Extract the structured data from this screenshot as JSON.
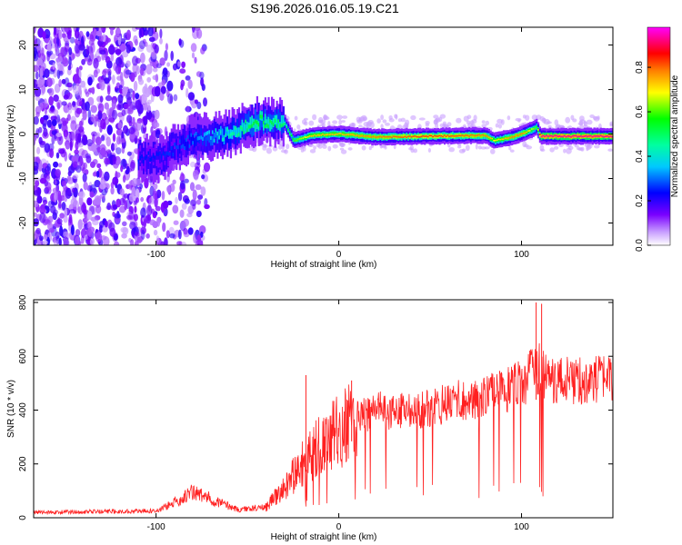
{
  "title": "S196.2026.016.05.19.C21",
  "chart_data": [
    {
      "type": "heatmap",
      "xlabel": "Height of straight line (km)",
      "ylabel": "Frequency (Hz)",
      "xlim": [
        -167,
        150
      ],
      "ylim": [
        -25,
        24
      ],
      "xticks": [
        -100,
        0,
        100
      ],
      "yticks": [
        -20,
        -10,
        0,
        10,
        20
      ],
      "colorbar": {
        "label": "Normalized spectral amplitude",
        "range": [
          0,
          0.98
        ],
        "ticks": [
          "0.0",
          "0.2",
          "0.4",
          "0.6",
          "0.8"
        ],
        "colors": [
          "#ffffff",
          "#7a00ff",
          "#0000ff",
          "#00ffff",
          "#00ff00",
          "#ffff00",
          "#ff0000",
          "#ff00ff"
        ]
      },
      "ridge": [
        {
          "x": -100,
          "f": -5.5,
          "amp": 0.25
        },
        {
          "x": -80,
          "f": -1.0,
          "amp": 0.3
        },
        {
          "x": -60,
          "f": 0.0,
          "amp": 0.45
        },
        {
          "x": -45,
          "f": 3.0,
          "amp": 0.55
        },
        {
          "x": -30,
          "f": 2.5,
          "amp": 0.5
        },
        {
          "x": -25,
          "f": -1.5,
          "amp": 0.6
        },
        {
          "x": -15,
          "f": -0.3,
          "amp": 0.75
        },
        {
          "x": 0,
          "f": 0.0,
          "amp": 0.75
        },
        {
          "x": 20,
          "f": -0.7,
          "amp": 0.8
        },
        {
          "x": 50,
          "f": -0.5,
          "amp": 0.85
        },
        {
          "x": 80,
          "f": -0.3,
          "amp": 0.8
        },
        {
          "x": 85,
          "f": -1.5,
          "amp": 0.7
        },
        {
          "x": 95,
          "f": -0.6,
          "amp": 0.8
        },
        {
          "x": 100,
          "f": 0.0,
          "amp": 0.8
        },
        {
          "x": 108,
          "f": 1.5,
          "amp": 0.6
        },
        {
          "x": 110,
          "f": -0.5,
          "amp": 0.95
        },
        {
          "x": 150,
          "f": -0.5,
          "amp": 0.95
        }
      ]
    },
    {
      "type": "line",
      "xlabel": "Height of straight line (km)",
      "ylabel": "SNR (10 * v/v)",
      "xlim": [
        -167,
        150
      ],
      "ylim": [
        0,
        810
      ],
      "xticks": [
        -100,
        0,
        100
      ],
      "yticks": [
        0,
        200,
        400,
        600,
        800
      ],
      "color": "#ff2020",
      "envelope": [
        {
          "x": -167,
          "y": 20
        },
        {
          "x": -100,
          "y": 25
        },
        {
          "x": -90,
          "y": 55
        },
        {
          "x": -80,
          "y": 95
        },
        {
          "x": -70,
          "y": 70
        },
        {
          "x": -55,
          "y": 30
        },
        {
          "x": -40,
          "y": 40
        },
        {
          "x": -30,
          "y": 110
        },
        {
          "x": -20,
          "y": 200
        },
        {
          "x": -10,
          "y": 270
        },
        {
          "x": 0,
          "y": 320
        },
        {
          "x": 10,
          "y": 370
        },
        {
          "x": 20,
          "y": 400
        },
        {
          "x": 40,
          "y": 390
        },
        {
          "x": 60,
          "y": 430
        },
        {
          "x": 80,
          "y": 450
        },
        {
          "x": 90,
          "y": 470
        },
        {
          "x": 100,
          "y": 500
        },
        {
          "x": 110,
          "y": 560
        },
        {
          "x": 115,
          "y": 510
        },
        {
          "x": 150,
          "y": 510
        }
      ],
      "spikes": [
        {
          "x": -18,
          "y": 530
        },
        {
          "x": 7,
          "y": 510
        },
        {
          "x": 108,
          "y": 800
        },
        {
          "x": 111,
          "y": 795
        }
      ]
    }
  ]
}
